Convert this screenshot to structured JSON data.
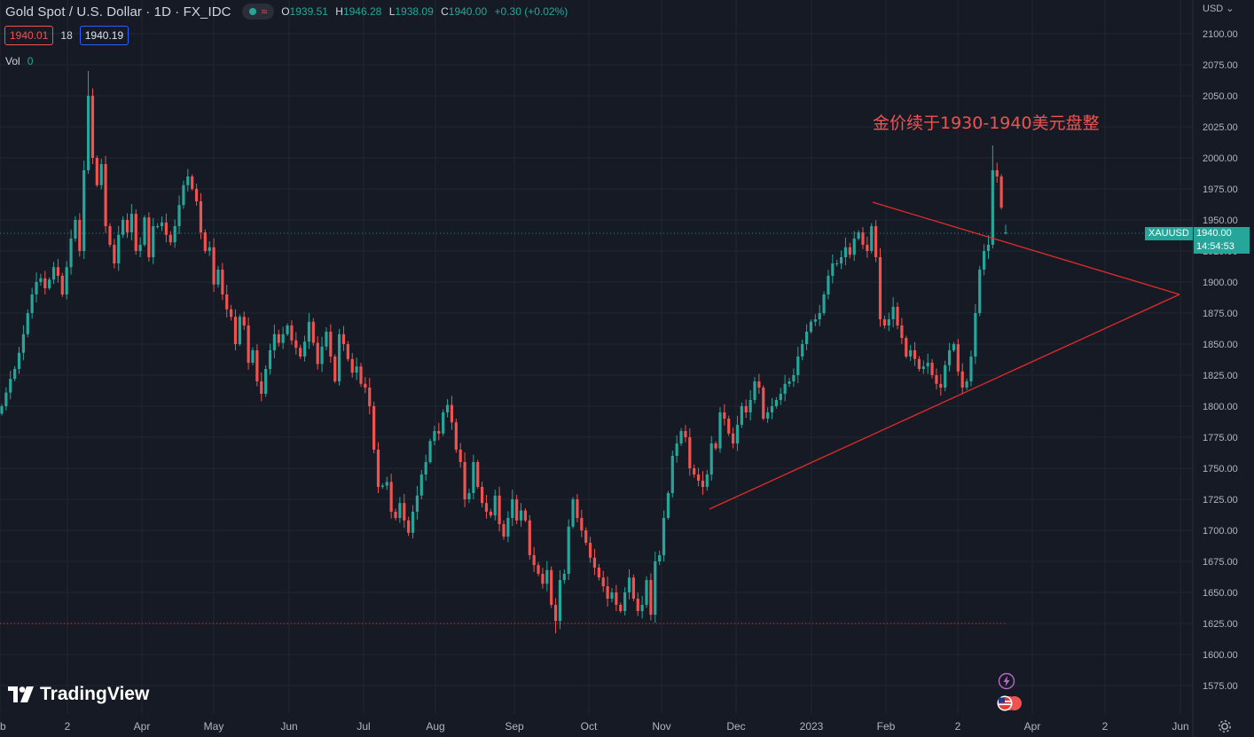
{
  "header": {
    "symbol": "Gold Spot / U.S. Dollar · 1D · FX_IDC",
    "ohlc": [
      {
        "k": "O",
        "v": "1939.51"
      },
      {
        "k": "H",
        "v": "1946.28"
      },
      {
        "k": "L",
        "v": "1938.09"
      },
      {
        "k": "C",
        "v": "1940.00"
      },
      {
        "k": "",
        "v": "+0.30 (+0.02%)"
      }
    ],
    "sell_price": "1940.01",
    "spread": "18",
    "buy_price": "1940.19",
    "vol_label": "Vol",
    "vol_value": "0",
    "currency": "USD"
  },
  "annotation": "金价续于1930-1940美元盘整",
  "price_tag": {
    "symbol": "XAUUSD",
    "price": "1940.00",
    "countdown": "14:54:53"
  },
  "brand": "TradingView",
  "colors": {
    "background": "#161a25",
    "up": "#26a69a",
    "down": "#ef5350",
    "grid": "#222631",
    "trendline": "#e32b2b",
    "axis_text": "#b2b5be"
  },
  "chart_data": {
    "type": "candlestick",
    "title": "Gold Spot / U.S. Dollar",
    "interval": "1D",
    "ylim": [
      1562,
      2112
    ],
    "y_ticks": [
      1575,
      1600,
      1625,
      1650,
      1675,
      1700,
      1725,
      1750,
      1775,
      1800,
      1825,
      1850,
      1875,
      1900,
      1925,
      1950,
      1975,
      2000,
      2025,
      2050,
      2075,
      2100
    ],
    "x_ticks": [
      "b",
      "2",
      "Apr",
      "May",
      "Jun",
      "Jul",
      "Aug",
      "Sep",
      "Oct",
      "Nov",
      "Dec",
      "2023",
      "Feb",
      "2",
      "Apr",
      "2",
      "Jun"
    ],
    "last_price": 1940.0,
    "low_reference_line": 1625,
    "closes": [
      1800,
      1811,
      1822,
      1830,
      1843,
      1858,
      1875,
      1890,
      1900,
      1903,
      1895,
      1902,
      1912,
      1905,
      1890,
      1912,
      1935,
      1950,
      1925,
      1990,
      2050,
      2000,
      1978,
      1995,
      1945,
      1930,
      1915,
      1938,
      1950,
      1940,
      1955,
      1925,
      1930,
      1952,
      1920,
      1945,
      1945,
      1948,
      1938,
      1932,
      1945,
      1962,
      1978,
      1985,
      1975,
      1965,
      1940,
      1925,
      1928,
      1898,
      1910,
      1890,
      1878,
      1872,
      1850,
      1872,
      1865,
      1835,
      1845,
      1820,
      1810,
      1830,
      1845,
      1858,
      1851,
      1858,
      1865,
      1853,
      1847,
      1840,
      1852,
      1868,
      1851,
      1834,
      1848,
      1860,
      1840,
      1820,
      1858,
      1850,
      1838,
      1827,
      1832,
      1818,
      1815,
      1800,
      1765,
      1735,
      1736,
      1739,
      1715,
      1710,
      1722,
      1708,
      1698,
      1715,
      1728,
      1745,
      1755,
      1772,
      1780,
      1778,
      1795,
      1801,
      1787,
      1765,
      1755,
      1725,
      1730,
      1755,
      1735,
      1722,
      1715,
      1712,
      1728,
      1705,
      1695,
      1710,
      1725,
      1708,
      1716,
      1708,
      1680,
      1672,
      1665,
      1657,
      1668,
      1640,
      1627,
      1660,
      1665,
      1703,
      1725,
      1710,
      1700,
      1690,
      1678,
      1670,
      1662,
      1655,
      1645,
      1650,
      1640,
      1635,
      1650,
      1662,
      1645,
      1635,
      1640,
      1660,
      1632,
      1675,
      1680,
      1710,
      1730,
      1760,
      1770,
      1780,
      1775,
      1750,
      1745,
      1740,
      1735,
      1745,
      1770,
      1766,
      1795,
      1790,
      1778,
      1770,
      1785,
      1800,
      1795,
      1805,
      1820,
      1815,
      1790,
      1795,
      1800,
      1805,
      1810,
      1818,
      1820,
      1825,
      1840,
      1850,
      1860,
      1868,
      1870,
      1875,
      1890,
      1905,
      1915,
      1915,
      1920,
      1928,
      1922,
      1935,
      1940,
      1930,
      1925,
      1945,
      1920,
      1870,
      1865,
      1870,
      1880,
      1865,
      1855,
      1840,
      1845,
      1838,
      1830,
      1832,
      1835,
      1825,
      1818,
      1815,
      1833,
      1845,
      1850,
      1828,
      1815,
      1820,
      1840,
      1875,
      1910,
      1925,
      1930,
      1990,
      1985,
      1960,
      1940
    ]
  }
}
